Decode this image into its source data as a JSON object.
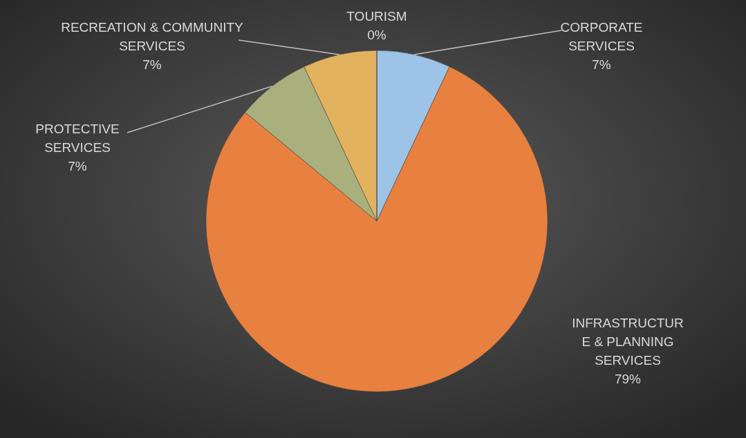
{
  "chart_data": {
    "type": "pie",
    "categories": [
      "CORPORATE SERVICES",
      "INFRASTRUCTURE & PLANNING SERVICES",
      "PROTECTIVE SERVICES",
      "RECREATION & COMMUNITY SERVICES",
      "TOURISM"
    ],
    "values": [
      7,
      79,
      7,
      7,
      0
    ],
    "colors": [
      "#9dc3e6",
      "#e8803f",
      "#a9b07e",
      "#e2b25e",
      "#c9a04a"
    ],
    "value_labels": [
      "7%",
      "79%",
      "7%",
      "7%",
      "0%"
    ]
  }
}
